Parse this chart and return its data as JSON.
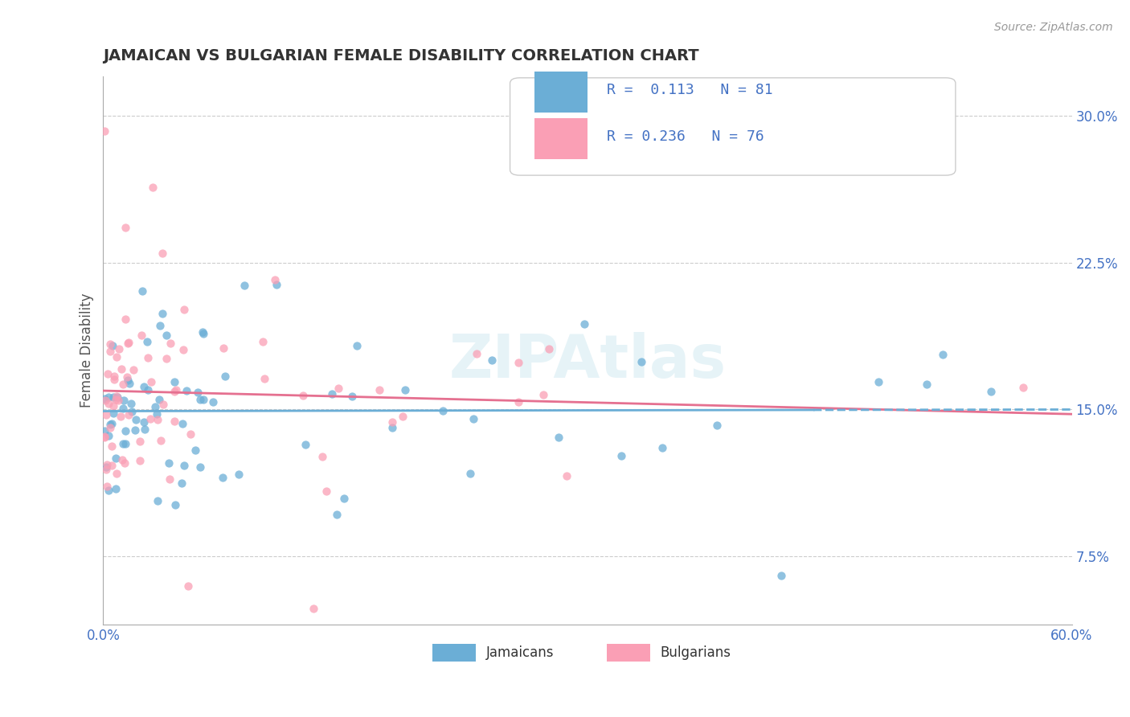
{
  "title": "JAMAICAN VS BULGARIAN FEMALE DISABILITY CORRELATION CHART",
  "source": "Source: ZipAtlas.com",
  "ylabel": "Female Disability",
  "xlim": [
    0.0,
    0.6
  ],
  "ylim": [
    0.04,
    0.32
  ],
  "yticks": [
    0.075,
    0.15,
    0.225,
    0.3
  ],
  "ytick_labels": [
    "7.5%",
    "15.0%",
    "22.5%",
    "30.0%"
  ],
  "xtick_labels": [
    "0.0%",
    "60.0%"
  ],
  "jamaicans_color": "#6baed6",
  "bulgarians_color": "#fa9fb5",
  "trend_jamaicans_color": "#6baed6",
  "trend_bulgarians_color": "#e57090",
  "R_jamaicans": 0.113,
  "N_jamaicans": 81,
  "R_bulgarians": 0.236,
  "N_bulgarians": 76,
  "watermark": "ZIPAtlas",
  "background_color": "#ffffff",
  "grid_color": "#cccccc"
}
